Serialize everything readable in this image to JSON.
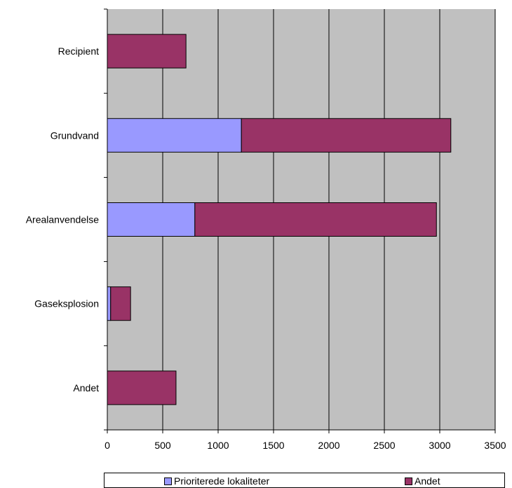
{
  "chart_data": {
    "type": "bar",
    "orientation": "horizontal",
    "stacked": true,
    "categories": [
      "Recipient",
      "Grundvand",
      "Arealanvendelse",
      "Gaseksplosion",
      "Andet"
    ],
    "series": [
      {
        "name": "Prioriterede lokaliteter",
        "color": "#9999ff",
        "values": [
          0,
          1210,
          790,
          30,
          0
        ]
      },
      {
        "name": "Andet",
        "color": "#993366",
        "values": [
          710,
          1890,
          2180,
          180,
          620
        ]
      }
    ],
    "xlim": [
      0,
      3500
    ],
    "xticks": [
      0,
      500,
      1000,
      1500,
      2000,
      2500,
      3000,
      3500
    ],
    "grid": true,
    "plot_background": "#c0c0c0",
    "legend_position": "bottom"
  }
}
